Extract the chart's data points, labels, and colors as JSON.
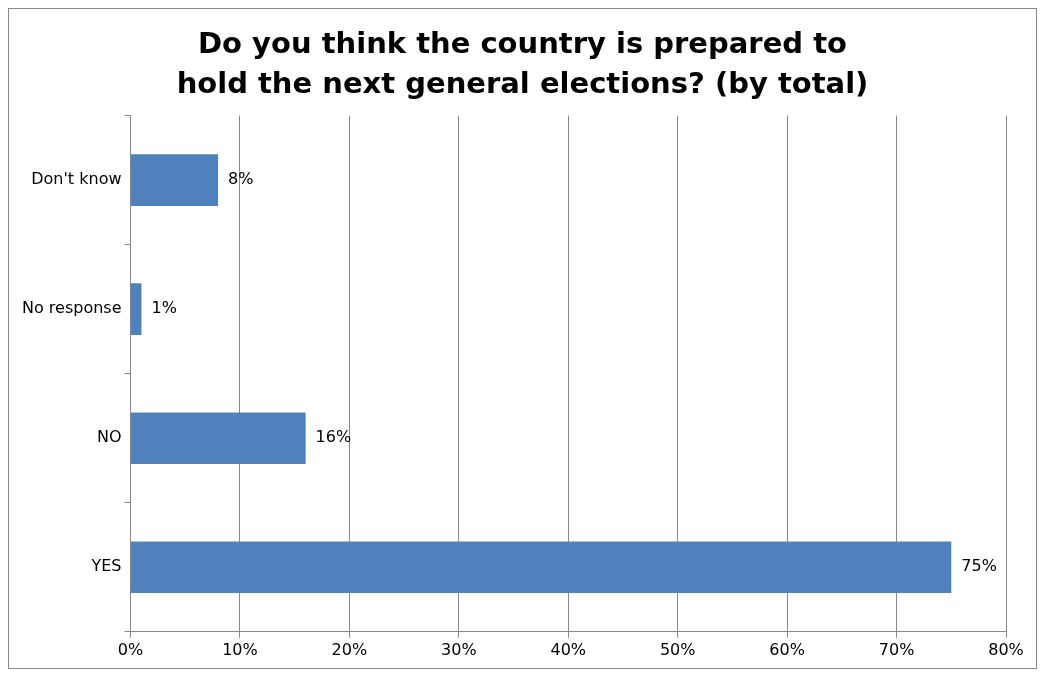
{
  "chart_data": {
    "type": "bar",
    "orientation": "horizontal",
    "title": "Do you think the country is prepared to hold the next general elections? (by total)",
    "categories": [
      "Don't know",
      "No response",
      "NO",
      "YES"
    ],
    "values": [
      8,
      1,
      16,
      75
    ],
    "value_labels": [
      "8%",
      "1%",
      "16%",
      "75%"
    ],
    "color": "#4f81bd",
    "xlim": [
      0,
      80
    ],
    "xticks": [
      {
        "value": 0,
        "label": "0%"
      },
      {
        "value": 10,
        "label": "10%"
      },
      {
        "value": 20,
        "label": "20%"
      },
      {
        "value": 30,
        "label": "30%"
      },
      {
        "value": 40,
        "label": "40%"
      },
      {
        "value": 50,
        "label": "50%"
      },
      {
        "value": 60,
        "label": "60%"
      },
      {
        "value": 70,
        "label": "70%"
      },
      {
        "value": 80,
        "label": "80%"
      }
    ],
    "grid": "x",
    "legend": false
  }
}
